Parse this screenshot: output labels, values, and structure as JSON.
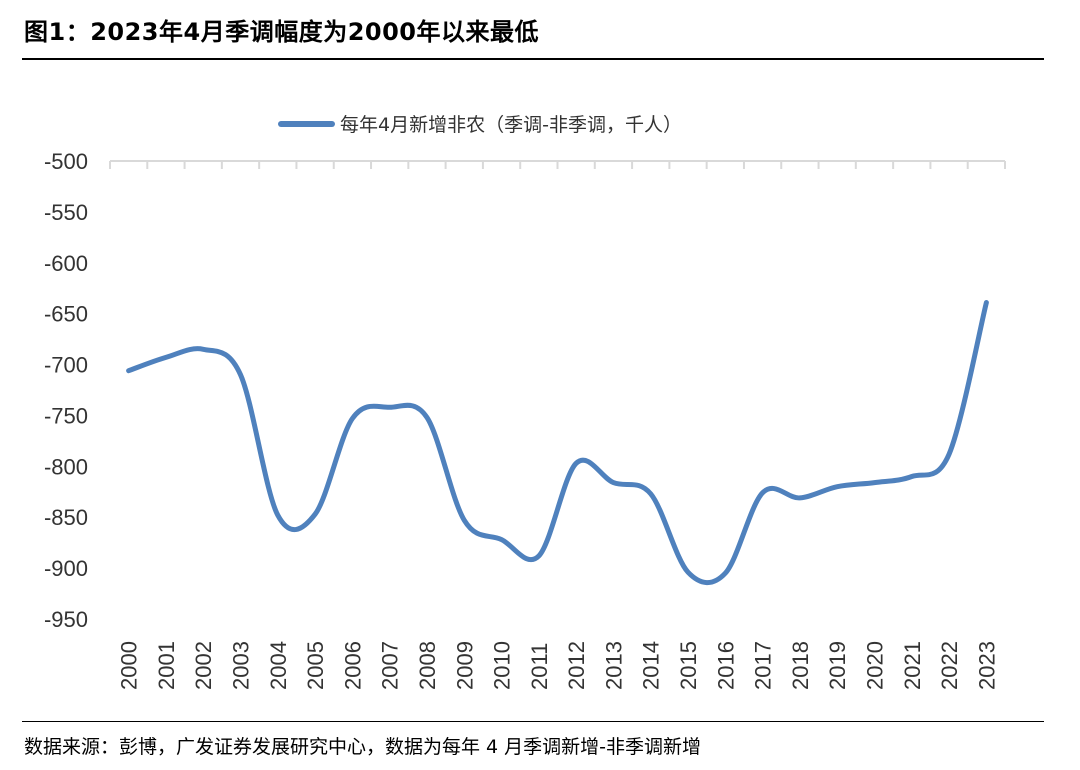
{
  "figure": {
    "title": "图1：2023年4月季调幅度为2000年以来最低",
    "source": "数据来源：彭博，广发证券发展研究中心，数据为每年 4 月季调新增-非季调新增"
  },
  "chart_data": {
    "type": "line",
    "title": "",
    "xlabel": "",
    "ylabel": "",
    "x": [
      "2000",
      "2001",
      "2002",
      "2003",
      "2004",
      "2005",
      "2006",
      "2007",
      "2008",
      "2009",
      "2010",
      "2011",
      "2012",
      "2013",
      "2014",
      "2015",
      "2016",
      "2017",
      "2018",
      "2019",
      "2020",
      "2021",
      "2022",
      "2023"
    ],
    "series": [
      {
        "name": "每年4月新增非农（季调-非季调，千人）",
        "color": "#4F81BD",
        "values": [
          -706,
          -693,
          -685,
          -710,
          -848,
          -847,
          -753,
          -742,
          -752,
          -853,
          -872,
          -888,
          -797,
          -816,
          -827,
          -904,
          -905,
          -826,
          -831,
          -820,
          -816,
          -810,
          -788,
          -639
        ]
      }
    ],
    "ylim": [
      -950,
      -500
    ],
    "yticks": [
      -500,
      -550,
      -600,
      -650,
      -700,
      -750,
      -800,
      -850,
      -900,
      -950
    ],
    "smooth": true,
    "grid": false,
    "legend_position": "top-center"
  }
}
